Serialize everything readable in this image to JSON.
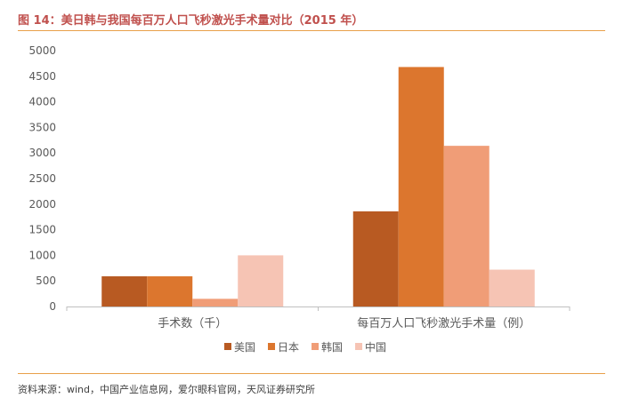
{
  "header": {
    "title": "图 14：美日韩与我国每百万人口飞秒激光手术量对比（2015 年）"
  },
  "footer": {
    "source": "资料来源：wind，中国产业信息网，爱尔眼科官网，天风证券研究所"
  },
  "chart_data": {
    "type": "bar",
    "title": "图 14：美日韩与我国每百万人口飞秒激光手术量对比（2015 年）",
    "categories": [
      "手术数（千）",
      "每百万人口飞秒激光手术量（例）"
    ],
    "series": [
      {
        "name": "美国",
        "values": [
          590,
          1860
        ],
        "color": "#b85a22"
      },
      {
        "name": "日本",
        "values": [
          590,
          4680
        ],
        "color": "#dc762e"
      },
      {
        "name": "韩国",
        "values": [
          150,
          3140
        ],
        "color": "#f09d77"
      },
      {
        "name": "中国",
        "values": [
          1000,
          720
        ],
        "color": "#f6c4b4"
      }
    ],
    "ylim": [
      0,
      5000
    ],
    "yticks": [
      0,
      500,
      1000,
      1500,
      2000,
      2500,
      3000,
      3500,
      4000,
      4500,
      5000
    ],
    "grid": false,
    "legend": "bottom"
  }
}
